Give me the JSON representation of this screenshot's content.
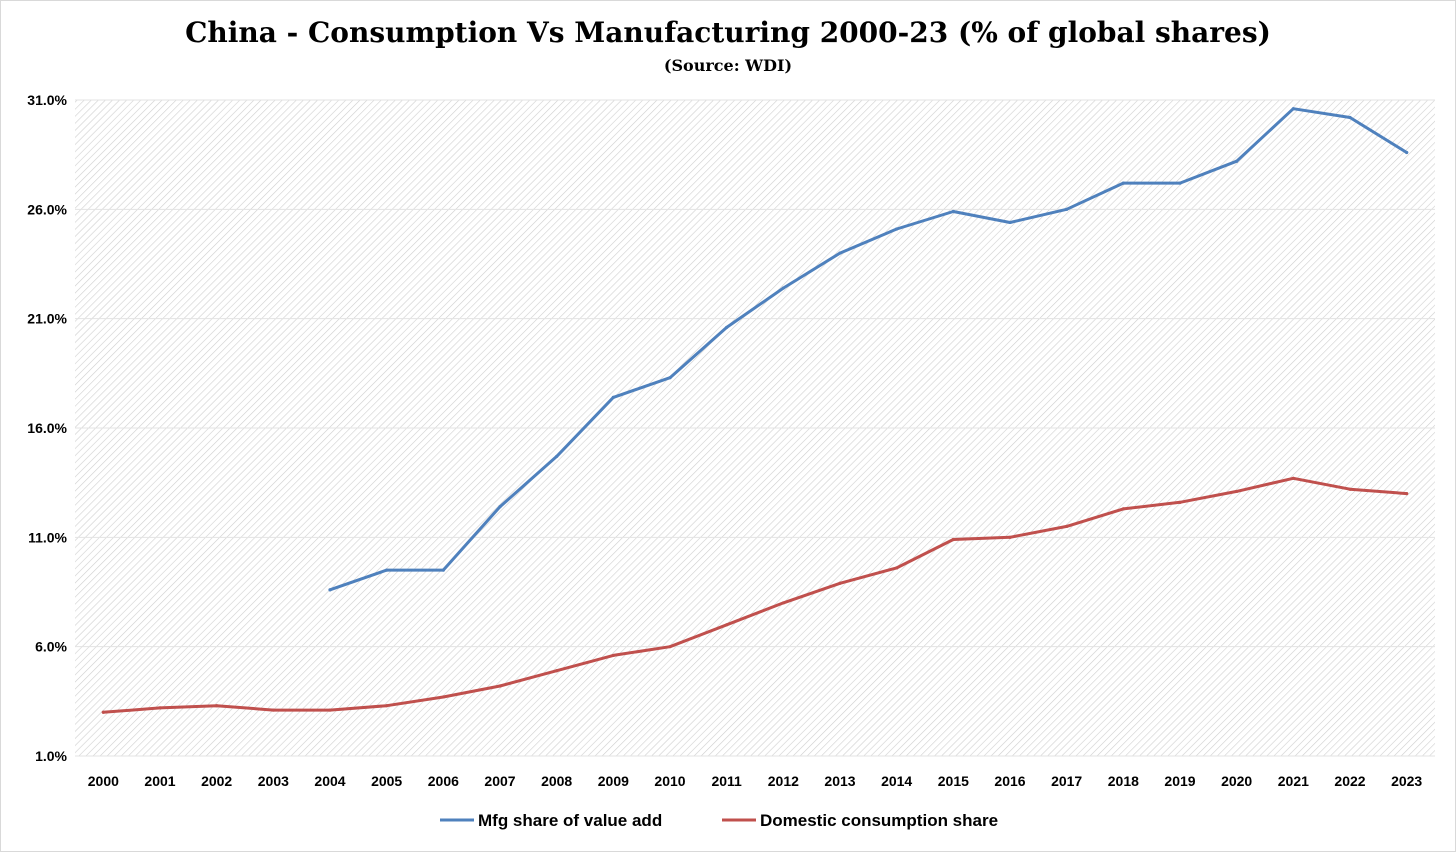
{
  "title": "China - Consumption Vs Manufacturing 2000-23 (% of global shares)",
  "subtitle": "(Source: WDI)",
  "chart_data": {
    "type": "line",
    "title": "China - Consumption Vs Manufacturing 2000-23 (% of global shares)",
    "subtitle": "(Source: WDI)",
    "xlabel": "",
    "ylabel": "",
    "categories": [
      "2000",
      "2001",
      "2002",
      "2003",
      "2004",
      "2005",
      "2006",
      "2007",
      "2008",
      "2009",
      "2010",
      "2011",
      "2012",
      "2013",
      "2014",
      "2015",
      "2016",
      "2017",
      "2018",
      "2019",
      "2020",
      "2021",
      "2022",
      "2023"
    ],
    "ylim": [
      1.0,
      31.0
    ],
    "yticks": [
      "1.0%",
      "6.0%",
      "11.0%",
      "16.0%",
      "21.0%",
      "26.0%",
      "31.0%"
    ],
    "grid": true,
    "legend_position": "bottom",
    "series": [
      {
        "name": "Mfg share of value add",
        "color": "#4f81bd",
        "values": [
          null,
          null,
          null,
          null,
          8.6,
          9.5,
          9.5,
          12.4,
          14.7,
          17.4,
          18.3,
          20.6,
          22.4,
          24.0,
          25.1,
          25.9,
          25.4,
          26.0,
          27.2,
          27.2,
          28.2,
          30.6,
          30.2,
          28.6
        ]
      },
      {
        "name": "Domestic consumption share",
        "color": "#c0504d",
        "values": [
          3.0,
          3.2,
          3.3,
          3.1,
          3.1,
          3.3,
          3.7,
          4.2,
          4.9,
          5.6,
          6.0,
          7.0,
          8.0,
          8.9,
          9.6,
          10.9,
          11.0,
          11.5,
          12.3,
          12.6,
          13.1,
          13.7,
          13.2,
          13.0
        ]
      }
    ]
  }
}
